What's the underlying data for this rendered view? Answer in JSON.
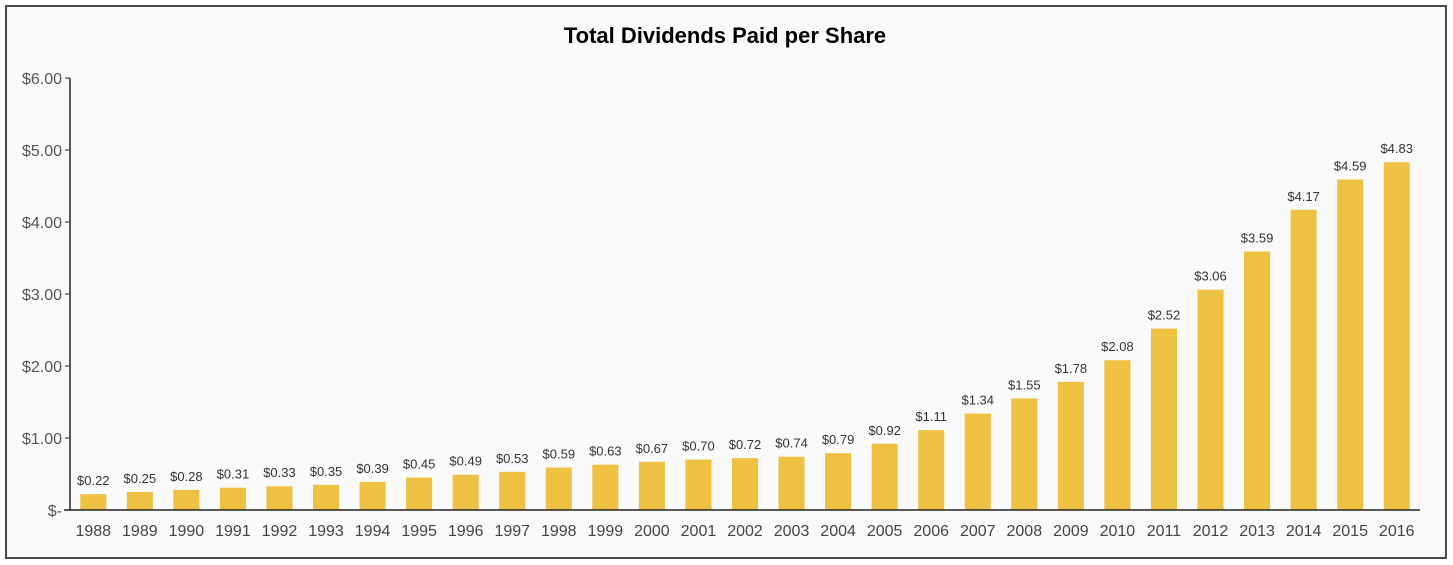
{
  "chart_data": {
    "type": "bar",
    "title": "Total Dividends Paid per Share",
    "xlabel": "",
    "ylabel": "",
    "ylim": [
      0,
      6
    ],
    "yticks": [
      {
        "value": 0,
        "label": "$-"
      },
      {
        "value": 1,
        "label": "$1.00"
      },
      {
        "value": 2,
        "label": "$2.00"
      },
      {
        "value": 3,
        "label": "$3.00"
      },
      {
        "value": 4,
        "label": "$4.00"
      },
      {
        "value": 5,
        "label": "$5.00"
      },
      {
        "value": 6,
        "label": "$6.00"
      }
    ],
    "grid": false,
    "legend": "none",
    "bar_color": "#EFC143",
    "categories": [
      "1988",
      "1989",
      "1990",
      "1991",
      "1992",
      "1993",
      "1994",
      "1995",
      "1996",
      "1997",
      "1998",
      "1999",
      "2000",
      "2001",
      "2002",
      "2003",
      "2004",
      "2005",
      "2006",
      "2007",
      "2008",
      "2009",
      "2010",
      "2011",
      "2012",
      "2013",
      "2014",
      "2015",
      "2016"
    ],
    "values": [
      0.22,
      0.25,
      0.28,
      0.31,
      0.33,
      0.35,
      0.39,
      0.45,
      0.49,
      0.53,
      0.59,
      0.63,
      0.67,
      0.7,
      0.72,
      0.74,
      0.79,
      0.92,
      1.11,
      1.34,
      1.55,
      1.78,
      2.08,
      2.52,
      3.06,
      3.59,
      4.17,
      4.59,
      4.83
    ],
    "data_labels": [
      "$0.22",
      "$0.25",
      "$0.28",
      "$0.31",
      "$0.33",
      "$0.35",
      "$0.39",
      "$0.45",
      "$0.49",
      "$0.53",
      "$0.59",
      "$0.63",
      "$0.67",
      "$0.70",
      "$0.72",
      "$0.74",
      "$0.79",
      "$0.92",
      "$1.11",
      "$1.34",
      "$1.55",
      "$1.78",
      "$2.08",
      "$2.52",
      "$3.06",
      "$3.59",
      "$4.17",
      "$4.59",
      "$4.83"
    ]
  }
}
